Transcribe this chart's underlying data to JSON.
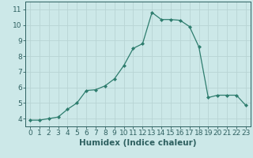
{
  "x": [
    0,
    1,
    2,
    3,
    4,
    5,
    6,
    7,
    8,
    9,
    10,
    11,
    12,
    13,
    14,
    15,
    16,
    17,
    18,
    19,
    20,
    21,
    22,
    23
  ],
  "y": [
    3.9,
    3.9,
    4.0,
    4.1,
    4.6,
    5.0,
    5.8,
    5.85,
    6.1,
    6.55,
    7.4,
    8.5,
    8.8,
    10.8,
    10.35,
    10.35,
    10.3,
    9.9,
    8.6,
    5.35,
    5.5,
    5.5,
    5.5,
    4.85
  ],
  "line_color": "#2e7d6e",
  "bg_color": "#cce8e8",
  "grid_color": "#b8d4d4",
  "xlabel": "Humidex (Indice chaleur)",
  "xlim": [
    -0.5,
    23.5
  ],
  "ylim": [
    3.5,
    11.5
  ],
  "yticks": [
    4,
    5,
    6,
    7,
    8,
    9,
    10,
    11
  ],
  "xticks": [
    0,
    1,
    2,
    3,
    4,
    5,
    6,
    7,
    8,
    9,
    10,
    11,
    12,
    13,
    14,
    15,
    16,
    17,
    18,
    19,
    20,
    21,
    22,
    23
  ],
  "font_color": "#2e6060",
  "tick_fontsize": 6.5,
  "xlabel_fontsize": 7.5,
  "marker": "D",
  "marker_size": 2.0,
  "line_width": 0.9
}
